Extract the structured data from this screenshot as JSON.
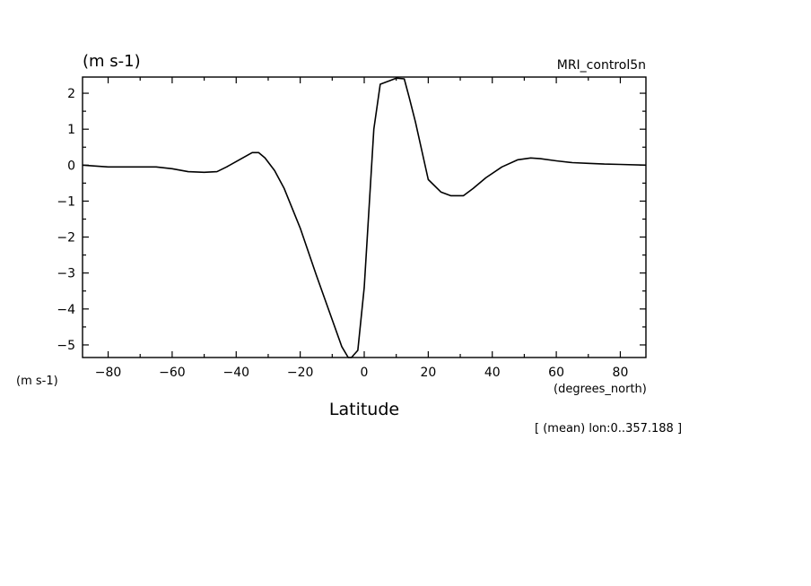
{
  "chart_data": {
    "type": "line",
    "top_left_units": "(m s-1)",
    "run_label": "MRI_control5n",
    "y_units_label": "(m s-1)",
    "x_units_label": "(degrees_north)",
    "xlabel": "Latitude",
    "footnote": "[ (mean) lon:0..357.188 ]",
    "xlim": [
      -88,
      88
    ],
    "ylim": [
      -5.35,
      2.45
    ],
    "x_ticks": [
      -80,
      -60,
      -40,
      -20,
      0,
      20,
      40,
      60,
      80
    ],
    "y_ticks": [
      2,
      1,
      0,
      -1,
      -2,
      -3,
      -4,
      -5
    ],
    "series": [
      {
        "x": [
          -88,
          -80,
          -70,
          -65,
          -60,
          -55,
          -50,
          -46,
          -43,
          -40,
          -37,
          -35,
          -33,
          -31,
          -28,
          -25,
          -20,
          -15,
          -10,
          -7,
          -5,
          -4,
          -2,
          0,
          3,
          5,
          8,
          10,
          12.5,
          14,
          16,
          20,
          24,
          27,
          29,
          31,
          34,
          38,
          43,
          48,
          52,
          55,
          60,
          65,
          70,
          75,
          80,
          88
        ],
        "y": [
          0.0,
          -0.05,
          -0.05,
          -0.05,
          -0.1,
          -0.18,
          -0.2,
          -0.18,
          -0.05,
          0.1,
          0.25,
          0.35,
          0.35,
          0.2,
          -0.15,
          -0.65,
          -1.75,
          -3.05,
          -4.3,
          -5.05,
          -5.35,
          -5.35,
          -5.15,
          -3.4,
          1.0,
          2.25,
          2.35,
          2.42,
          2.4,
          1.9,
          1.2,
          -0.4,
          -0.75,
          -0.85,
          -0.85,
          -0.85,
          -0.65,
          -0.35,
          -0.05,
          0.15,
          0.2,
          0.18,
          0.12,
          0.07,
          0.05,
          0.03,
          0.02,
          0.0
        ]
      }
    ]
  }
}
